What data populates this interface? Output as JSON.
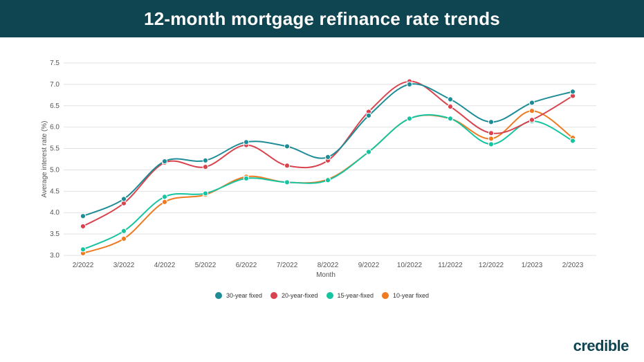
{
  "header": {
    "title": "12-month mortgage refinance rate trends"
  },
  "brand": {
    "logo_text": "credible"
  },
  "chart_data": {
    "type": "line",
    "title": "12-month mortgage refinance rate trends",
    "xlabel": "Month",
    "ylabel": "Average interest rate (%)",
    "ylim": [
      3.0,
      7.5
    ],
    "yticks": [
      "3.0",
      "3.5",
      "4.0",
      "4.5",
      "5.0",
      "5.5",
      "6.0",
      "6.5",
      "7.0",
      "7.5"
    ],
    "grid": true,
    "legend_position": "bottom",
    "categories": [
      "2/2022",
      "3/2022",
      "4/2022",
      "5/2022",
      "6/2022",
      "7/2022",
      "8/2022",
      "9/2022",
      "10/2022",
      "11/2022",
      "12/2022",
      "1/2023",
      "2/2023"
    ],
    "series": [
      {
        "name": "30-year fixed",
        "color": "#1e8c96",
        "values": [
          3.92,
          4.32,
          5.2,
          5.22,
          5.65,
          5.55,
          5.3,
          6.27,
          7.0,
          6.65,
          6.12,
          6.57,
          6.83
        ]
      },
      {
        "name": "20-year-fixed",
        "color": "#d9434e",
        "values": [
          3.68,
          4.22,
          5.17,
          5.07,
          5.58,
          5.1,
          5.22,
          6.36,
          7.07,
          6.48,
          5.86,
          6.17,
          6.73
        ]
      },
      {
        "name": "15-year-fixed",
        "color": "#17c4a0",
        "values": [
          3.14,
          3.57,
          4.37,
          4.45,
          4.8,
          4.71,
          4.76,
          5.42,
          6.2,
          6.2,
          5.6,
          6.14,
          5.68
        ]
      },
      {
        "name": "10-year fixed",
        "color": "#ee7a22",
        "values": [
          3.05,
          3.39,
          4.25,
          4.42,
          4.84,
          4.71,
          4.78,
          5.42,
          6.2,
          6.2,
          5.73,
          6.38,
          5.75
        ]
      }
    ]
  }
}
